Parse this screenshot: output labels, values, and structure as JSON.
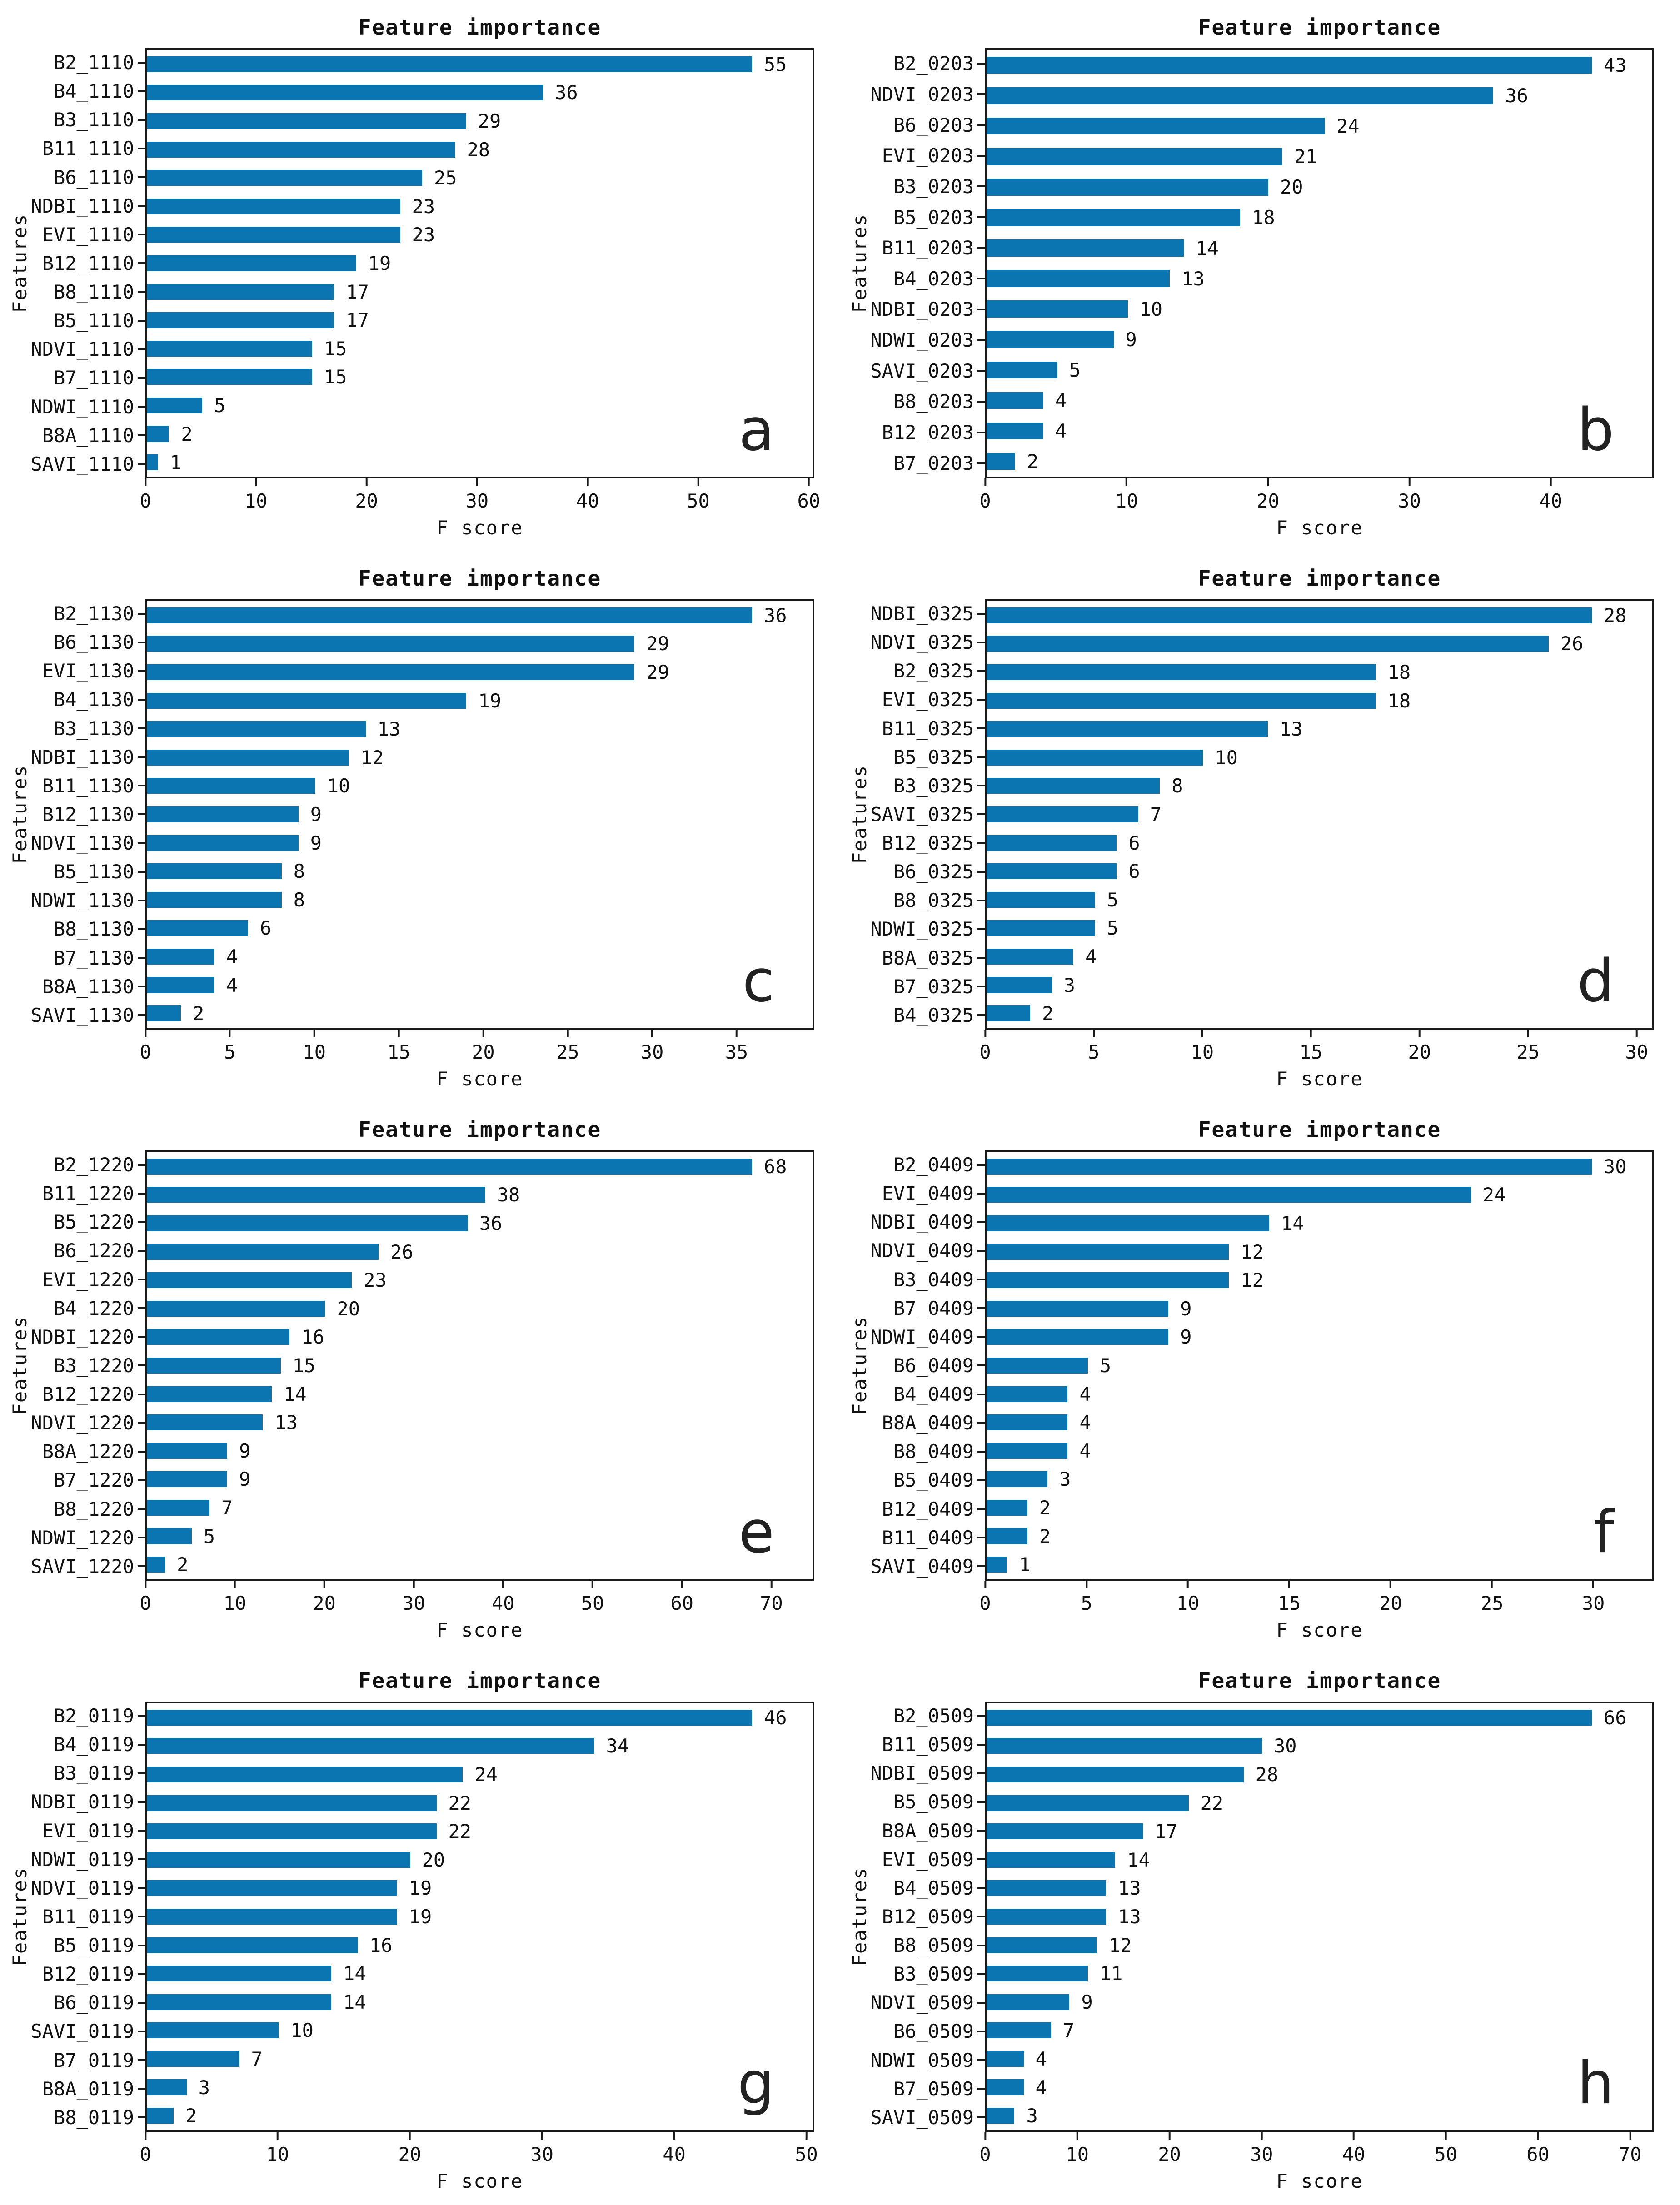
{
  "chart_data": [
    {
      "type": "bar",
      "orientation": "horizontal",
      "panel_label": "a",
      "title": "Feature importance",
      "xlabel": "F score",
      "ylabel": "Features",
      "categories": [
        "B2_1110",
        "B4_1110",
        "B3_1110",
        "B11_1110",
        "B6_1110",
        "NDBI_1110",
        "EVI_1110",
        "B12_1110",
        "B8_1110",
        "B5_1110",
        "NDVI_1110",
        "B7_1110",
        "NDWI_1110",
        "B8A_1110",
        "SAVI_1110"
      ],
      "values": [
        55,
        36,
        29,
        28,
        25,
        23,
        23,
        19,
        17,
        17,
        15,
        15,
        5,
        2,
        1
      ],
      "xlim": [
        0,
        60.5
      ],
      "xticks": [
        0,
        10,
        20,
        30,
        40,
        50,
        60
      ],
      "bar_color": "#0b75b2",
      "grid": false,
      "legend": "none"
    },
    {
      "type": "bar",
      "orientation": "horizontal",
      "panel_label": "b",
      "title": "Feature importance",
      "xlabel": "F score",
      "ylabel": "Features",
      "categories": [
        "B2_0203",
        "NDVI_0203",
        "B6_0203",
        "EVI_0203",
        "B3_0203",
        "B5_0203",
        "B11_0203",
        "B4_0203",
        "NDBI_0203",
        "NDWI_0203",
        "SAVI_0203",
        "B8_0203",
        "B12_0203",
        "B7_0203"
      ],
      "values": [
        43,
        36,
        24,
        21,
        20,
        18,
        14,
        13,
        10,
        9,
        5,
        4,
        4,
        2
      ],
      "xlim": [
        0,
        47.3
      ],
      "xticks": [
        0,
        10,
        20,
        30,
        40
      ],
      "bar_color": "#0b75b2",
      "grid": false,
      "legend": "none"
    },
    {
      "type": "bar",
      "orientation": "horizontal",
      "panel_label": "c",
      "title": "Feature importance",
      "xlabel": "F score",
      "ylabel": "Features",
      "categories": [
        "B2_1130",
        "B6_1130",
        "EVI_1130",
        "B4_1130",
        "B3_1130",
        "NDBI_1130",
        "B11_1130",
        "B12_1130",
        "NDVI_1130",
        "B5_1130",
        "NDWI_1130",
        "B8_1130",
        "B7_1130",
        "B8A_1130",
        "SAVI_1130"
      ],
      "values": [
        36,
        29,
        29,
        19,
        13,
        12,
        10,
        9,
        9,
        8,
        8,
        6,
        4,
        4,
        2
      ],
      "xlim": [
        0,
        39.6
      ],
      "xticks": [
        0,
        5,
        10,
        15,
        20,
        25,
        30,
        35
      ],
      "bar_color": "#0b75b2",
      "grid": false,
      "legend": "none"
    },
    {
      "type": "bar",
      "orientation": "horizontal",
      "panel_label": "d",
      "title": "Feature importance",
      "xlabel": "F score",
      "ylabel": "Features",
      "categories": [
        "NDBI_0325",
        "NDVI_0325",
        "B2_0325",
        "EVI_0325",
        "B11_0325",
        "B5_0325",
        "B3_0325",
        "SAVI_0325",
        "B12_0325",
        "B6_0325",
        "B8_0325",
        "NDWI_0325",
        "B8A_0325",
        "B7_0325",
        "B4_0325"
      ],
      "values": [
        28,
        26,
        18,
        18,
        13,
        10,
        8,
        7,
        6,
        6,
        5,
        5,
        4,
        3,
        2
      ],
      "xlim": [
        0,
        30.8
      ],
      "xticks": [
        0,
        5,
        10,
        15,
        20,
        25,
        30
      ],
      "bar_color": "#0b75b2",
      "grid": false,
      "legend": "none"
    },
    {
      "type": "bar",
      "orientation": "horizontal",
      "panel_label": "e",
      "title": "Feature importance",
      "xlabel": "F score",
      "ylabel": "Features",
      "categories": [
        "B2_1220",
        "B11_1220",
        "B5_1220",
        "B6_1220",
        "EVI_1220",
        "B4_1220",
        "NDBI_1220",
        "B3_1220",
        "B12_1220",
        "NDVI_1220",
        "B8A_1220",
        "B7_1220",
        "B8_1220",
        "NDWI_1220",
        "SAVI_1220"
      ],
      "values": [
        68,
        38,
        36,
        26,
        23,
        20,
        16,
        15,
        14,
        13,
        9,
        9,
        7,
        5,
        2
      ],
      "xlim": [
        0,
        74.8
      ],
      "xticks": [
        0,
        10,
        20,
        30,
        40,
        50,
        60,
        70
      ],
      "bar_color": "#0b75b2",
      "grid": false,
      "legend": "none"
    },
    {
      "type": "bar",
      "orientation": "horizontal",
      "panel_label": "f",
      "title": "Feature importance",
      "xlabel": "F score",
      "ylabel": "Features",
      "categories": [
        "B2_0409",
        "EVI_0409",
        "NDBI_0409",
        "NDVI_0409",
        "B3_0409",
        "B7_0409",
        "NDWI_0409",
        "B6_0409",
        "B4_0409",
        "B8A_0409",
        "B8_0409",
        "B5_0409",
        "B12_0409",
        "B11_0409",
        "SAVI_0409"
      ],
      "values": [
        30,
        24,
        14,
        12,
        12,
        9,
        9,
        5,
        4,
        4,
        4,
        3,
        2,
        2,
        1
      ],
      "xlim": [
        0,
        33
      ],
      "xticks": [
        0,
        5,
        10,
        15,
        20,
        25,
        30
      ],
      "bar_color": "#0b75b2",
      "grid": false,
      "legend": "none"
    },
    {
      "type": "bar",
      "orientation": "horizontal",
      "panel_label": "g",
      "title": "Feature importance",
      "xlabel": "F score",
      "ylabel": "Features",
      "categories": [
        "B2_0119",
        "B4_0119",
        "B3_0119",
        "NDBI_0119",
        "EVI_0119",
        "NDWI_0119",
        "NDVI_0119",
        "B11_0119",
        "B5_0119",
        "B12_0119",
        "B6_0119",
        "SAVI_0119",
        "B7_0119",
        "B8A_0119",
        "B8_0119"
      ],
      "values": [
        46,
        34,
        24,
        22,
        22,
        20,
        19,
        19,
        16,
        14,
        14,
        10,
        7,
        3,
        2
      ],
      "xlim": [
        0,
        50.6
      ],
      "xticks": [
        0,
        10,
        20,
        30,
        40,
        50
      ],
      "bar_color": "#0b75b2",
      "grid": false,
      "legend": "none"
    },
    {
      "type": "bar",
      "orientation": "horizontal",
      "panel_label": "h",
      "title": "Feature importance",
      "xlabel": "F score",
      "ylabel": "Features",
      "categories": [
        "B2_0509",
        "B11_0509",
        "NDBI_0509",
        "B5_0509",
        "B8A_0509",
        "EVI_0509",
        "B4_0509",
        "B12_0509",
        "B8_0509",
        "B3_0509",
        "NDVI_0509",
        "B6_0509",
        "NDWI_0509",
        "B7_0509",
        "SAVI_0509"
      ],
      "values": [
        66,
        30,
        28,
        22,
        17,
        14,
        13,
        13,
        12,
        11,
        9,
        7,
        4,
        4,
        3
      ],
      "xlim": [
        0,
        72.6
      ],
      "xticks": [
        0,
        10,
        20,
        30,
        40,
        50,
        60,
        70
      ],
      "bar_color": "#0b75b2",
      "grid": false,
      "legend": "none"
    }
  ]
}
